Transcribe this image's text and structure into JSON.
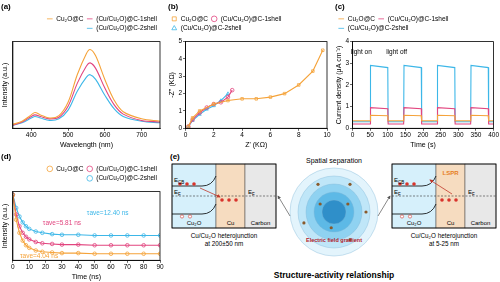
{
  "chart_data": [
    {
      "type": "line",
      "title": "(a)",
      "x_label": "Wavelength (nm)",
      "y_label": "Intensity (a.u.)",
      "x": [
        350,
        375,
        400,
        410,
        425,
        450,
        475,
        500,
        525,
        550,
        560,
        575,
        600,
        625,
        650,
        700,
        750
      ],
      "series": [
        {
          "name": "Cu₂O@C",
          "color": "#f5a33a",
          "values": [
            0.05,
            0.09,
            0.17,
            0.2,
            0.17,
            0.13,
            0.16,
            0.33,
            0.68,
            0.95,
            1.0,
            0.92,
            0.62,
            0.36,
            0.21,
            0.12,
            0.09
          ]
        },
        {
          "name": "(Cu/Cu₂O)@C-1shell",
          "color": "#e2457f",
          "values": [
            0.04,
            0.08,
            0.15,
            0.17,
            0.15,
            0.12,
            0.14,
            0.28,
            0.57,
            0.79,
            0.83,
            0.76,
            0.51,
            0.3,
            0.18,
            0.1,
            0.08
          ]
        },
        {
          "name": "(Cu/Cu₂O)@C-2shell",
          "color": "#3db7e8",
          "values": [
            0.04,
            0.07,
            0.13,
            0.15,
            0.13,
            0.1,
            0.12,
            0.23,
            0.47,
            0.65,
            0.68,
            0.62,
            0.42,
            0.25,
            0.15,
            0.09,
            0.07
          ]
        }
      ],
      "xlim": [
        350,
        750
      ],
      "xticks": [
        400,
        500,
        600,
        700
      ],
      "ylim": [
        0,
        1.1
      ],
      "tick_labels": "x",
      "legend": "top-right",
      "grid": false
    },
    {
      "type": "scatter",
      "title": "(b)",
      "x_label": "Z' (KΩ)",
      "y_label": "-Z'' (KΩ)",
      "series": [
        {
          "name": "Cu₂O@C",
          "color": "#f5a33a",
          "marker": "square",
          "line_style": "solid",
          "x": [
            0.2,
            0.5,
            1,
            2,
            3,
            4,
            5,
            6,
            7,
            8,
            9,
            9.7
          ],
          "values": [
            0.1,
            0.6,
            1.0,
            1.4,
            1.6,
            1.7,
            1.7,
            1.8,
            2.0,
            2.5,
            3.3,
            4.5
          ]
        },
        {
          "name": "(Cu/Cu₂O)@C-1shell",
          "color": "#e2457f",
          "marker": "circle",
          "line_style": "solid",
          "x": [
            0.2,
            0.5,
            1,
            1.5,
            2,
            2.5,
            3,
            3.3
          ],
          "values": [
            0.1,
            0.5,
            0.9,
            1.2,
            1.4,
            1.5,
            1.8,
            2.2
          ]
        },
        {
          "name": "(Cu/Cu₂O)@C-2shell",
          "color": "#3db7e8",
          "marker": "triangle",
          "line_style": "solid",
          "x": [
            0.2,
            0.5,
            1,
            1.5,
            2,
            2.5,
            3
          ],
          "values": [
            0.1,
            0.45,
            0.8,
            1.1,
            1.3,
            1.6,
            2.0
          ]
        }
      ],
      "xlim": [
        0,
        10
      ],
      "xticks": [
        0,
        2,
        4,
        6,
        8,
        10
      ],
      "ylim": [
        0,
        5
      ],
      "yticks": [
        0,
        1,
        2,
        3,
        4,
        5
      ],
      "legend": "top-left",
      "grid": false
    },
    {
      "type": "line",
      "title": "(c)",
      "x_label": "Time (s)",
      "y_label": "Current density (μA cm⁻²)",
      "x": [
        0,
        50,
        51,
        100,
        101,
        145,
        146,
        195,
        196,
        240,
        241,
        290,
        291,
        335,
        336,
        385,
        386,
        400
      ],
      "series": [
        {
          "name": "Cu₂O@C",
          "color": "#f5a33a",
          "values": [
            0.35,
            0.35,
            0.6,
            0.58,
            0.35,
            0.35,
            0.6,
            0.58,
            0.35,
            0.35,
            0.6,
            0.58,
            0.35,
            0.35,
            0.6,
            0.58,
            0.35,
            0.35
          ]
        },
        {
          "name": "(Cu/Cu₂O)@C-1shell",
          "color": "#e2457f",
          "values": [
            0.2,
            0.2,
            0.95,
            0.9,
            0.2,
            0.2,
            0.95,
            0.9,
            0.2,
            0.2,
            0.95,
            0.9,
            0.2,
            0.2,
            0.95,
            0.9,
            0.2,
            0.2
          ]
        },
        {
          "name": "(Cu/Cu₂O)@C-2shell",
          "color": "#3db7e8",
          "values": [
            0.3,
            0.3,
            2.9,
            2.8,
            0.3,
            0.3,
            2.9,
            2.8,
            0.3,
            0.3,
            2.9,
            2.8,
            0.3,
            0.3,
            2.9,
            2.8,
            0.3,
            0.3
          ]
        }
      ],
      "xlim": [
        0,
        400
      ],
      "xticks": [
        0,
        50,
        100,
        150,
        200,
        250,
        300,
        350,
        400
      ],
      "ylim": [
        0,
        4
      ],
      "yticks": [
        0,
        1,
        2,
        3,
        4
      ],
      "annotations": [
        {
          "text": "light on",
          "x": 25,
          "y": 3.5
        },
        {
          "text": "light off",
          "x": 125,
          "y": 3.5
        }
      ],
      "legend": "top-left",
      "grid": false
    },
    {
      "type": "scatter",
      "title": "(d)",
      "x_label": "Time (ns)",
      "y_label": "Intensity (a.u.)",
      "x": [
        0,
        2,
        4,
        6,
        8,
        10,
        14,
        18,
        24,
        30,
        40,
        50,
        60,
        70,
        80,
        90
      ],
      "series": [
        {
          "name": "Cu₂O@C",
          "color": "#f5a33a",
          "marker": "circle",
          "line_style": "solid",
          "values": [
            1.0,
            0.62,
            0.42,
            0.3,
            0.23,
            0.19,
            0.15,
            0.13,
            0.12,
            0.11,
            0.11,
            0.1,
            0.1,
            0.1,
            0.1,
            0.1
          ]
        },
        {
          "name": "(Cu/Cu₂O)@C-1shell",
          "color": "#e2457f",
          "marker": "circle",
          "line_style": "solid",
          "values": [
            1.0,
            0.7,
            0.52,
            0.42,
            0.36,
            0.32,
            0.28,
            0.26,
            0.25,
            0.24,
            0.24,
            0.23,
            0.23,
            0.23,
            0.23,
            0.23
          ]
        },
        {
          "name": "(Cu/Cu₂O)@C-2shell",
          "color": "#3db7e8",
          "marker": "circle",
          "line_style": "solid",
          "values": [
            1.0,
            0.8,
            0.67,
            0.58,
            0.52,
            0.48,
            0.44,
            0.42,
            0.4,
            0.39,
            0.39,
            0.38,
            0.38,
            0.38,
            0.38,
            0.38
          ]
        }
      ],
      "xlim": [
        0,
        90
      ],
      "xticks": [
        0,
        10,
        20,
        30,
        40,
        50,
        60,
        70,
        80,
        90
      ],
      "ylim": [
        0,
        1.05
      ],
      "annotations": [
        {
          "text": "τave=4.04 ns",
          "x": 16,
          "y": 0.06,
          "color": "#f5a33a"
        },
        {
          "text": "τave=5.81 ns",
          "x": 30,
          "y": 0.56,
          "color": "#e2457f"
        },
        {
          "text": "τave=12.40 ns",
          "x": 58,
          "y": 0.72,
          "color": "#3db7e8"
        }
      ],
      "tick_labels": "x",
      "legend": "top-right",
      "grid": false
    }
  ],
  "diagram": {
    "label": "(e)",
    "left": {
      "layers": [
        "Cu₂O",
        "Cu",
        "Carbon"
      ],
      "levels": [
        {
          "text": "E",
          "sub": "CB"
        },
        {
          "text": "E",
          "sub": "F"
        },
        {
          "text": "E",
          "sub": "F"
        }
      ],
      "caption": [
        "Cu/Cu₂O heterojunction",
        "at 200±50 nm"
      ]
    },
    "center": {
      "title": "Spatial separation",
      "gradient": "Electric field gradient"
    },
    "right": {
      "layers": [
        "Cu₂O",
        "Cu",
        "Carbon"
      ],
      "levels": [
        {
          "text": "E",
          "sub": "CB"
        },
        {
          "text": "E",
          "sub": "F"
        },
        {
          "text": "E",
          "sub": "F"
        }
      ],
      "effect": "LSPR",
      "caption": [
        "Cu/Cu₂O heterojunction",
        "at 5-25 nm"
      ]
    },
    "footer": "Structure-activity relationship"
  }
}
